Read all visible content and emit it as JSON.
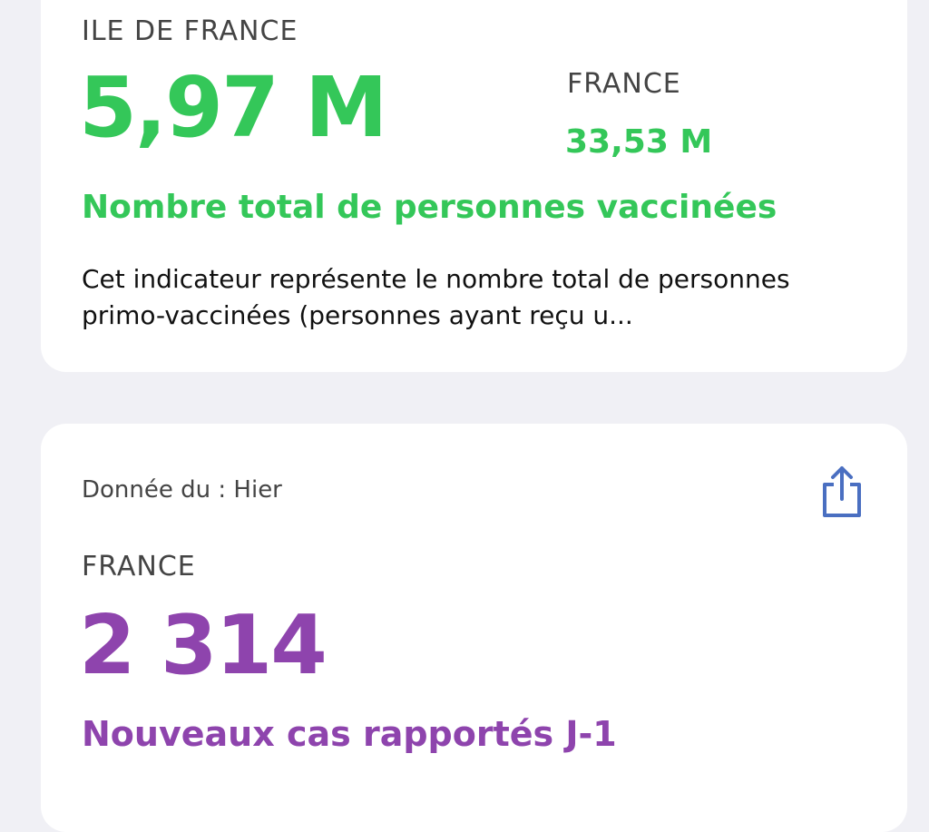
{
  "cards": [
    {
      "region": "ILE DE FRANCE",
      "value": "5,97 M",
      "compare_region": "FRANCE",
      "compare_value": "33,53 M",
      "label": "Nombre total de personnes vaccinées",
      "description": "Cet indicateur représente le nombre total de personnes primo-vaccinées (personnes ayant reçu u..."
    },
    {
      "date": "Donnée du : Hier",
      "region": "FRANCE",
      "value": "2 314",
      "label": "Nouveaux cas rapportés J-1"
    }
  ]
}
